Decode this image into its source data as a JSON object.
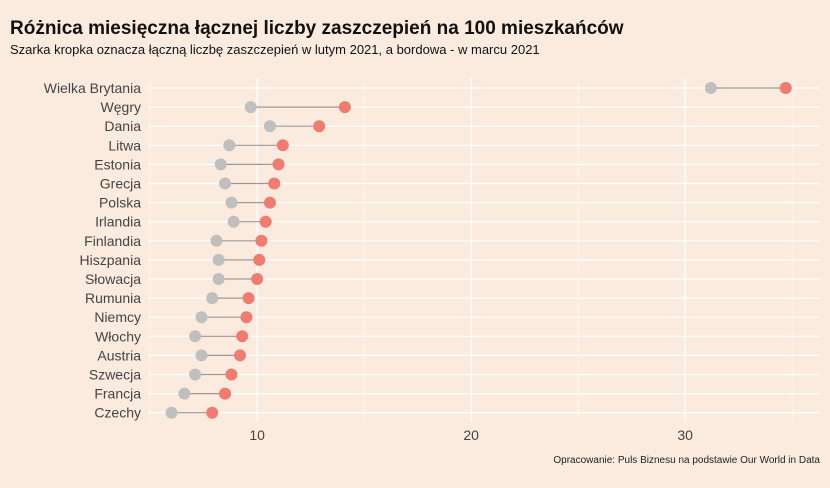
{
  "title": "Różnica miesięczna łącznej liczby zaszczepień na 100 mieszkańców",
  "subtitle": "Szarka kropka oznacza łączną liczbę zaszczepień w lutym 2021, a bordowa - w marcu 2021",
  "caption": "Opracowanie: Puls Biznesu na podstawie Our World in Data",
  "chart_data": {
    "type": "dumbbell",
    "categories": [
      "Wielka Brytania",
      "Węgry",
      "Dania",
      "Litwa",
      "Estonia",
      "Grecja",
      "Polska",
      "Irlandia",
      "Finlandia",
      "Hiszpania",
      "Słowacja",
      "Rumunia",
      "Niemcy",
      "Włochy",
      "Austria",
      "Szwecja",
      "Francja",
      "Czechy"
    ],
    "series": [
      {
        "values": [
          31.2,
          9.7,
          10.6,
          8.7,
          8.3,
          8.5,
          8.8,
          8.9,
          8.1,
          8.2,
          8.2,
          7.9,
          7.4,
          7.1,
          7.4,
          7.1,
          6.6,
          6.0
        ]
      },
      {
        "values": [
          34.7,
          14.1,
          12.9,
          11.2,
          11.0,
          10.8,
          10.6,
          10.4,
          10.2,
          10.1,
          10.0,
          9.6,
          9.5,
          9.3,
          9.2,
          8.8,
          8.5,
          7.9
        ]
      }
    ],
    "x_ticks": [
      10,
      20,
      30
    ],
    "xlim": [
      4.9,
      36.3
    ],
    "grid": true,
    "colors": {
      "february": "#bfbfbf",
      "march": "#ef7b71",
      "connector": "#999999",
      "grid": "#ffffff",
      "background": "#fbebdf"
    }
  }
}
